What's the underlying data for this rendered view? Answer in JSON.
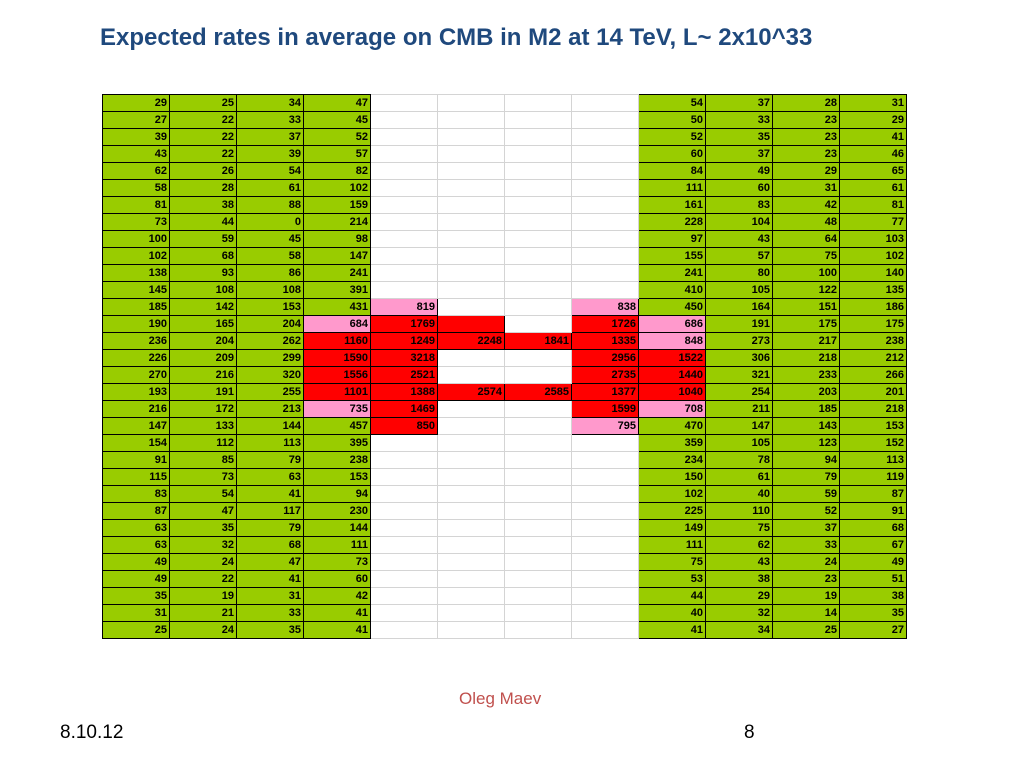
{
  "slide": {
    "title": "Expected rates in average on CMB in M2 at 14 TeV, L~ 2x10^33",
    "author": "Oleg Maev",
    "date": "8.10.12",
    "page_number": "8"
  },
  "colors": {
    "green": "#99cc00",
    "red": "#ff0000",
    "pink": "#ff99cc",
    "title": "#1f497d",
    "author": "#c0504d"
  },
  "table": {
    "rows": [
      [
        "29",
        "25",
        "34",
        "47",
        "",
        "",
        "",
        "",
        "54",
        "37",
        "28",
        "31"
      ],
      [
        "27",
        "22",
        "33",
        "45",
        "",
        "",
        "",
        "",
        "50",
        "33",
        "23",
        "29"
      ],
      [
        "39",
        "22",
        "37",
        "52",
        "",
        "",
        "",
        "",
        "52",
        "35",
        "23",
        "41"
      ],
      [
        "43",
        "22",
        "39",
        "57",
        "",
        "",
        "",
        "",
        "60",
        "37",
        "23",
        "46"
      ],
      [
        "62",
        "26",
        "54",
        "82",
        "",
        "",
        "",
        "",
        "84",
        "49",
        "29",
        "65"
      ],
      [
        "58",
        "28",
        "61",
        "102",
        "",
        "",
        "",
        "",
        "111",
        "60",
        "31",
        "61"
      ],
      [
        "81",
        "38",
        "88",
        "159",
        "",
        "",
        "",
        "",
        "161",
        "83",
        "42",
        "81"
      ],
      [
        "73",
        "44",
        "0",
        "214",
        "",
        "",
        "",
        "",
        "228",
        "104",
        "48",
        "77"
      ],
      [
        "100",
        "59",
        "45",
        "98",
        "",
        "",
        "",
        "",
        "97",
        "43",
        "64",
        "103"
      ],
      [
        "102",
        "68",
        "58",
        "147",
        "",
        "",
        "",
        "",
        "155",
        "57",
        "75",
        "102"
      ],
      [
        "138",
        "93",
        "86",
        "241",
        "",
        "",
        "",
        "",
        "241",
        "80",
        "100",
        "140"
      ],
      [
        "145",
        "108",
        "108",
        "391",
        "",
        "",
        "",
        "",
        "410",
        "105",
        "122",
        "135"
      ],
      [
        "185",
        "142",
        "153",
        "431",
        "819",
        "",
        "",
        "838",
        "450",
        "164",
        "151",
        "186"
      ],
      [
        "190",
        "165",
        "204",
        "684",
        "1769",
        "",
        "",
        "1726",
        "686",
        "191",
        "175",
        "175"
      ],
      [
        "236",
        "204",
        "262",
        "1160",
        "1249",
        "2248",
        "1841",
        "1335",
        "848",
        "273",
        "217",
        "238"
      ],
      [
        "226",
        "209",
        "299",
        "1590",
        "3218",
        "",
        "",
        "2956",
        "1522",
        "306",
        "218",
        "212"
      ],
      [
        "270",
        "216",
        "320",
        "1556",
        "2521",
        "",
        "",
        "2735",
        "1440",
        "321",
        "233",
        "266"
      ],
      [
        "193",
        "191",
        "255",
        "1101",
        "1388",
        "2574",
        "2585",
        "1377",
        "1040",
        "254",
        "203",
        "201"
      ],
      [
        "216",
        "172",
        "213",
        "735",
        "1469",
        "",
        "",
        "1599",
        "708",
        "211",
        "185",
        "218"
      ],
      [
        "147",
        "133",
        "144",
        "457",
        "850",
        "",
        "",
        "795",
        "470",
        "147",
        "143",
        "153"
      ],
      [
        "154",
        "112",
        "113",
        "395",
        "",
        "",
        "",
        "",
        "359",
        "105",
        "123",
        "152"
      ],
      [
        "91",
        "85",
        "79",
        "238",
        "",
        "",
        "",
        "",
        "234",
        "78",
        "94",
        "113"
      ],
      [
        "115",
        "73",
        "63",
        "153",
        "",
        "",
        "",
        "",
        "150",
        "61",
        "79",
        "119"
      ],
      [
        "83",
        "54",
        "41",
        "94",
        "",
        "",
        "",
        "",
        "102",
        "40",
        "59",
        "87"
      ],
      [
        "87",
        "47",
        "117",
        "230",
        "",
        "",
        "",
        "",
        "225",
        "110",
        "52",
        "91"
      ],
      [
        "63",
        "35",
        "79",
        "144",
        "",
        "",
        "",
        "",
        "149",
        "75",
        "37",
        "68"
      ],
      [
        "63",
        "32",
        "68",
        "111",
        "",
        "",
        "",
        "",
        "111",
        "62",
        "33",
        "67"
      ],
      [
        "49",
        "24",
        "47",
        "73",
        "",
        "",
        "",
        "",
        "75",
        "43",
        "24",
        "49"
      ],
      [
        "49",
        "22",
        "41",
        "60",
        "",
        "",
        "",
        "",
        "53",
        "38",
        "23",
        "51"
      ],
      [
        "35",
        "19",
        "31",
        "42",
        "",
        "",
        "",
        "",
        "44",
        "29",
        "19",
        "38"
      ],
      [
        "31",
        "21",
        "33",
        "41",
        "",
        "",
        "",
        "",
        "40",
        "32",
        "14",
        "35"
      ],
      [
        "25",
        "24",
        "35",
        "41",
        "",
        "",
        "",
        "",
        "41",
        "34",
        "25",
        "27"
      ]
    ],
    "cell_colors": [
      "gggg____gggg",
      "gggg____gggg",
      "gggg____gggg",
      "gggg____gggg",
      "gggg____gggg",
      "gggg____gggg",
      "gggg____gggg",
      "gggg____gggg",
      "gggg____gggg",
      "gggg____gggg",
      "gggg____gggg",
      "gggg____gggg",
      "ggggp__pgggg",
      "gggprr_rpggg",
      "gggrrrrrpggg",
      "gggrr__rrggg",
      "gggrr__rrggg",
      "gggrrrrrrggg",
      "gggpr__rpggg",
      "ggggr__pgggg",
      "gggg____gggg",
      "gggg____gggg",
      "gggg____gggg",
      "gggg____gggg",
      "gggg____gggg",
      "gggg____gggg",
      "gggg____gggg",
      "gggg____gggg",
      "gggg____gggg",
      "gggg____gggg",
      "gggg____gggg",
      "gggg____gggg"
    ]
  }
}
